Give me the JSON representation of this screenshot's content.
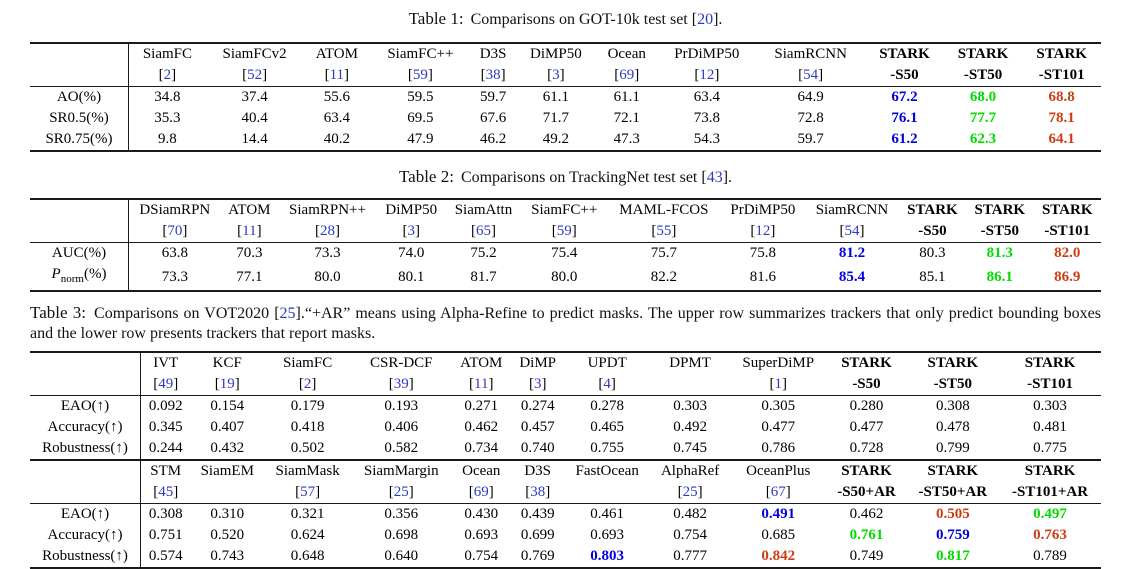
{
  "page": {
    "background": "#ffffff"
  },
  "colors": {
    "red": "#cc3d13",
    "green": "#00dc00",
    "blue": "#0000e0",
    "citation": "#2c3ac1",
    "text": "#000000",
    "rule": "#1a1a1a"
  },
  "tables": [
    {
      "caption": {
        "label": "Table 1:",
        "segments": [
          {
            "text": " Comparisons on GOT-10k test set "
          },
          {
            "cite": "20"
          },
          {
            "text": "."
          }
        ]
      },
      "sections": [
        {
          "columns": [
            {
              "line1": "SiamFC",
              "cite": "2"
            },
            {
              "line1": "SiamFCv2",
              "cite": "52"
            },
            {
              "line1": "ATOM",
              "cite": "11"
            },
            {
              "line1": "SiamFC++",
              "cite": "59"
            },
            {
              "line1": "D3S",
              "cite": "38"
            },
            {
              "line1": "DiMP50",
              "cite": "3"
            },
            {
              "line1": "Ocean",
              "cite": "69"
            },
            {
              "line1": "PrDiMP50",
              "cite": "12"
            },
            {
              "line1": "SiamRCNN",
              "cite": "54"
            },
            {
              "line1": "STARK",
              "line2": "-S50",
              "bold": true
            },
            {
              "line1": "STARK",
              "line2": "-ST50",
              "bold": true
            },
            {
              "line1": "STARK",
              "line2": "-ST101",
              "bold": true
            }
          ],
          "rows": [
            {
              "label": "AO(%)",
              "cells": [
                "34.8",
                "37.4",
                "55.6",
                "59.5",
                "59.7",
                "61.1",
                "61.1",
                "63.4",
                "64.9",
                {
                  "v": "67.2",
                  "c": "blue"
                },
                {
                  "v": "68.0",
                  "c": "green"
                },
                {
                  "v": "68.8",
                  "c": "red"
                }
              ]
            },
            {
              "label": "SR0.5(%)",
              "cells": [
                "35.3",
                "40.4",
                "63.4",
                "69.5",
                "67.6",
                "71.7",
                "72.1",
                "73.8",
                "72.8",
                {
                  "v": "76.1",
                  "c": "blue"
                },
                {
                  "v": "77.7",
                  "c": "green"
                },
                {
                  "v": "78.1",
                  "c": "red"
                }
              ]
            },
            {
              "label": "SR0.75(%)",
              "cells": [
                "9.8",
                "14.4",
                "40.2",
                "47.9",
                "46.2",
                "49.2",
                "47.3",
                "54.3",
                "59.7",
                {
                  "v": "61.2",
                  "c": "blue"
                },
                {
                  "v": "62.3",
                  "c": "green"
                },
                {
                  "v": "64.1",
                  "c": "red"
                }
              ]
            }
          ]
        }
      ]
    },
    {
      "caption": {
        "label": "Table 2:",
        "segments": [
          {
            "text": " Comparisons on TrackingNet test set "
          },
          {
            "cite": "43"
          },
          {
            "text": "."
          }
        ]
      },
      "sections": [
        {
          "columns": [
            {
              "line1": "DSiamRPN",
              "cite": "70"
            },
            {
              "line1": "ATOM",
              "cite": "11"
            },
            {
              "line1": "SiamRPN++",
              "cite": "28"
            },
            {
              "line1": "DiMP50",
              "cite": "3"
            },
            {
              "line1": "SiamAttn",
              "cite": "65"
            },
            {
              "line1": "SiamFC++",
              "cite": "59"
            },
            {
              "line1": "MAML-FCOS",
              "cite": "55"
            },
            {
              "line1": "PrDiMP50",
              "cite": "12"
            },
            {
              "line1": "SiamRCNN",
              "cite": "54"
            },
            {
              "line1": "STARK",
              "line2": "-S50",
              "bold": true
            },
            {
              "line1": "STARK",
              "line2": "-ST50",
              "bold": true
            },
            {
              "line1": "STARK",
              "line2": "-ST101",
              "bold": true
            }
          ],
          "rows": [
            {
              "label": "AUC(%)",
              "cells": [
                "63.8",
                "70.3",
                "73.3",
                "74.0",
                "75.2",
                "75.4",
                "75.7",
                "75.8",
                {
                  "v": "81.2",
                  "c": "blue"
                },
                "80.3",
                {
                  "v": "81.3",
                  "c": "green"
                },
                {
                  "v": "82.0",
                  "c": "red"
                }
              ]
            },
            {
              "label": "P_{norm}(%)",
              "cells": [
                "73.3",
                "77.1",
                "80.0",
                "80.1",
                "81.7",
                "80.0",
                "82.2",
                "81.6",
                {
                  "v": "85.4",
                  "c": "blue"
                },
                "85.1",
                {
                  "v": "86.1",
                  "c": "green"
                },
                {
                  "v": "86.9",
                  "c": "red"
                }
              ]
            }
          ]
        }
      ]
    },
    {
      "caption": {
        "label": "Table 3:",
        "segments": [
          {
            "text": " Comparisons on VOT2020 "
          },
          {
            "cite": "25"
          },
          {
            "text": ".“+AR” means using Alpha-Refine to predict masks. The upper row summarizes trackers that only predict bounding boxes and the lower row presents trackers that report masks."
          }
        ]
      },
      "sections": [
        {
          "columns": [
            {
              "line1": "IVT",
              "cite": "49"
            },
            {
              "line1": "KCF",
              "cite": "19"
            },
            {
              "line1": "SiamFC",
              "cite": "2"
            },
            {
              "line1": "CSR-DCF",
              "cite": "39"
            },
            {
              "line1": "ATOM",
              "cite": "11"
            },
            {
              "line1": "DiMP",
              "cite": "3"
            },
            {
              "line1": "UPDT",
              "cite": "4"
            },
            {
              "line1": "DPMT"
            },
            {
              "line1": "SuperDiMP",
              "cite": "1"
            },
            {
              "line1": "STARK",
              "line2": "-S50",
              "bold": true
            },
            {
              "line1": "STARK",
              "line2": "-ST50",
              "bold": true
            },
            {
              "line1": "STARK",
              "line2": "-ST101",
              "bold": true
            }
          ],
          "rows": [
            {
              "label": "EAO(↑)",
              "cells": [
                "0.092",
                "0.154",
                "0.179",
                "0.193",
                "0.271",
                "0.274",
                "0.278",
                "0.303",
                "0.305",
                "0.280",
                "0.308",
                "0.303"
              ]
            },
            {
              "label": "Accuracy(↑)",
              "cells": [
                "0.345",
                "0.407",
                "0.418",
                "0.406",
                "0.462",
                "0.457",
                "0.465",
                "0.492",
                "0.477",
                "0.477",
                "0.478",
                "0.481"
              ]
            },
            {
              "label": "Robustness(↑)",
              "cells": [
                "0.244",
                "0.432",
                "0.502",
                "0.582",
                "0.734",
                "0.740",
                "0.755",
                "0.745",
                "0.786",
                "0.728",
                "0.799",
                "0.775"
              ]
            }
          ]
        },
        {
          "columns": [
            {
              "line1": "STM",
              "cite": "45"
            },
            {
              "line1": "SiamEM"
            },
            {
              "line1": "SiamMask",
              "cite": "57"
            },
            {
              "line1": "SiamMargin",
              "cite": "25"
            },
            {
              "line1": "Ocean",
              "cite": "69"
            },
            {
              "line1": "D3S",
              "cite": "38"
            },
            {
              "line1": "FastOcean"
            },
            {
              "line1": "AlphaRef",
              "cite": "25"
            },
            {
              "line1": "OceanPlus",
              "cite": "67"
            },
            {
              "line1": "STARK",
              "line2": "-S50+AR",
              "bold": true
            },
            {
              "line1": "STARK",
              "line2": "-ST50+AR",
              "bold": true
            },
            {
              "line1": "STARK",
              "line2": "-ST101+AR",
              "bold": true
            }
          ],
          "rows": [
            {
              "label": "EAO(↑)",
              "cells": [
                "0.308",
                "0.310",
                "0.321",
                "0.356",
                "0.430",
                "0.439",
                "0.461",
                "0.482",
                {
                  "v": "0.491",
                  "c": "blue"
                },
                "0.462",
                {
                  "v": "0.505",
                  "c": "red"
                },
                {
                  "v": "0.497",
                  "c": "green"
                }
              ]
            },
            {
              "label": "Accuracy(↑)",
              "cells": [
                "0.751",
                "0.520",
                "0.624",
                "0.698",
                "0.693",
                "0.699",
                "0.693",
                "0.754",
                "0.685",
                {
                  "v": "0.761",
                  "c": "green"
                },
                {
                  "v": "0.759",
                  "c": "blue"
                },
                {
                  "v": "0.763",
                  "c": "red"
                }
              ]
            },
            {
              "label": "Robustness(↑)",
              "cells": [
                "0.574",
                "0.743",
                "0.648",
                "0.640",
                "0.754",
                "0.769",
                {
                  "v": "0.803",
                  "c": "blue"
                },
                "0.777",
                {
                  "v": "0.842",
                  "c": "red"
                },
                "0.749",
                {
                  "v": "0.817",
                  "c": "green"
                },
                "0.789"
              ]
            }
          ]
        }
      ]
    }
  ]
}
